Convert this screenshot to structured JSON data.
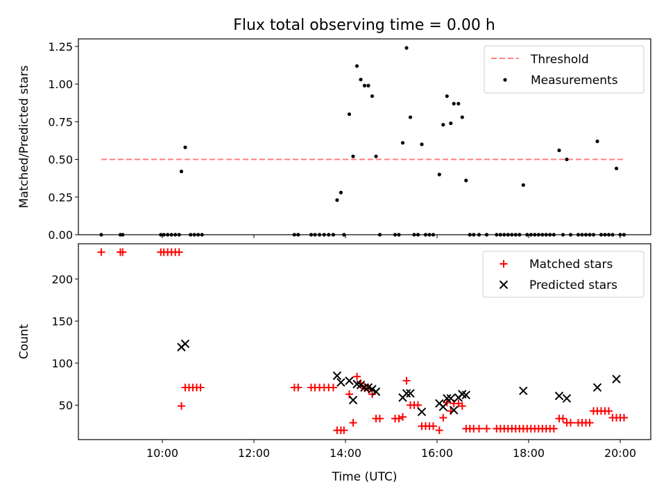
{
  "title": "Flux total observing time = 0.00 h",
  "chart_data": [
    {
      "type": "scatter",
      "ylabel": "Matched/Predicted stars",
      "xlabel": "",
      "ylim": [
        0,
        1.3
      ],
      "xlim": [
        "08:10",
        "20:40"
      ],
      "yticks": [
        0.0,
        0.25,
        0.5,
        0.75,
        1.0,
        1.25
      ],
      "ytick_labels": [
        "0.00",
        "0.25",
        "0.50",
        "0.75",
        "1.00",
        "1.25"
      ],
      "xticks": [
        "10:00",
        "12:00",
        "14:00",
        "16:00",
        "18:00",
        "20:00"
      ],
      "legend_position": "top-right",
      "threshold": {
        "name": "Threshold",
        "value": 0.5,
        "x_start": "08:40",
        "x_end": "20:05",
        "color": "#ff8080"
      },
      "measurements": {
        "name": "Measurements",
        "color": "#000000",
        "points": [
          [
            "08:40",
            0
          ],
          [
            "09:05",
            0
          ],
          [
            "09:08",
            0
          ],
          [
            "09:58",
            0
          ],
          [
            "10:02",
            0
          ],
          [
            "10:07",
            0
          ],
          [
            "10:12",
            0
          ],
          [
            "10:17",
            0
          ],
          [
            "10:22",
            0
          ],
          [
            "10:25",
            0.42
          ],
          [
            "10:30",
            0.58
          ],
          [
            "10:37",
            0
          ],
          [
            "10:42",
            0
          ],
          [
            "10:47",
            0
          ],
          [
            "10:52",
            0
          ],
          [
            "12:53",
            0
          ],
          [
            "12:58",
            0
          ],
          [
            "13:15",
            0
          ],
          [
            "13:20",
            0
          ],
          [
            "13:26",
            0
          ],
          [
            "13:32",
            0
          ],
          [
            "13:38",
            0
          ],
          [
            "13:44",
            0
          ],
          [
            "13:49",
            0.23
          ],
          [
            "13:54",
            0.28
          ],
          [
            "13:58",
            0
          ],
          [
            "14:05",
            0.8
          ],
          [
            "14:10",
            0.52
          ],
          [
            "14:15",
            1.12
          ],
          [
            "14:20",
            1.03
          ],
          [
            "14:25",
            0.99
          ],
          [
            "14:30",
            0.99
          ],
          [
            "14:35",
            0.92
          ],
          [
            "14:40",
            0.52
          ],
          [
            "14:45",
            0
          ],
          [
            "15:05",
            0
          ],
          [
            "15:10",
            0
          ],
          [
            "15:15",
            0.61
          ],
          [
            "15:20",
            1.24
          ],
          [
            "15:25",
            0.78
          ],
          [
            "15:30",
            0
          ],
          [
            "15:35",
            0
          ],
          [
            "15:40",
            0.6
          ],
          [
            "15:45",
            0
          ],
          [
            "15:50",
            0
          ],
          [
            "15:55",
            0
          ],
          [
            "16:03",
            0.4
          ],
          [
            "16:08",
            0.73
          ],
          [
            "16:13",
            0.92
          ],
          [
            "16:18",
            0.74
          ],
          [
            "16:22",
            0.87
          ],
          [
            "16:28",
            0.87
          ],
          [
            "16:33",
            0.78
          ],
          [
            "16:38",
            0.36
          ],
          [
            "16:43",
            0
          ],
          [
            "16:48",
            0
          ],
          [
            "16:55",
            0
          ],
          [
            "17:05",
            0
          ],
          [
            "17:18",
            0
          ],
          [
            "17:23",
            0
          ],
          [
            "17:28",
            0
          ],
          [
            "17:33",
            0
          ],
          [
            "17:38",
            0
          ],
          [
            "17:43",
            0
          ],
          [
            "17:48",
            0
          ],
          [
            "17:53",
            0.33
          ],
          [
            "17:58",
            0
          ],
          [
            "18:03",
            0
          ],
          [
            "18:08",
            0
          ],
          [
            "18:13",
            0
          ],
          [
            "18:18",
            0
          ],
          [
            "18:23",
            0
          ],
          [
            "18:28",
            0
          ],
          [
            "18:33",
            0
          ],
          [
            "18:40",
            0.56
          ],
          [
            "18:45",
            0
          ],
          [
            "18:50",
            0.5
          ],
          [
            "18:55",
            0
          ],
          [
            "19:05",
            0
          ],
          [
            "19:10",
            0
          ],
          [
            "19:15",
            0
          ],
          [
            "19:20",
            0
          ],
          [
            "19:25",
            0
          ],
          [
            "19:30",
            0.62
          ],
          [
            "19:35",
            0
          ],
          [
            "19:40",
            0
          ],
          [
            "19:45",
            0
          ],
          [
            "19:50",
            0
          ],
          [
            "19:55",
            0.44
          ],
          [
            "20:00",
            0
          ],
          [
            "20:05",
            0
          ]
        ]
      }
    },
    {
      "type": "scatter",
      "ylabel": "Count",
      "xlabel": "Time (UTC)",
      "ylim": [
        9,
        242
      ],
      "xlim": [
        "08:10",
        "20:40"
      ],
      "yticks": [
        50,
        100,
        150,
        200
      ],
      "ytick_labels": [
        "50",
        "100",
        "150",
        "200"
      ],
      "xticks": [
        "10:00",
        "12:00",
        "14:00",
        "16:00",
        "18:00",
        "20:00"
      ],
      "xtick_labels": [
        "10:00",
        "12:00",
        "14:00",
        "16:00",
        "18:00",
        "20:00"
      ],
      "legend_position": "top-right",
      "series": [
        {
          "name": "Matched stars",
          "marker": "plus",
          "color": "#ff0000",
          "points": [
            [
              "08:40",
              232
            ],
            [
              "09:05",
              232
            ],
            [
              "09:08",
              232
            ],
            [
              "09:58",
              232
            ],
            [
              "10:02",
              232
            ],
            [
              "10:07",
              232
            ],
            [
              "10:12",
              232
            ],
            [
              "10:17",
              232
            ],
            [
              "10:22",
              232
            ],
            [
              "10:25",
              49
            ],
            [
              "10:30",
              71
            ],
            [
              "10:35",
              71
            ],
            [
              "10:40",
              71
            ],
            [
              "10:45",
              71
            ],
            [
              "10:50",
              71
            ],
            [
              "12:53",
              71
            ],
            [
              "12:58",
              71
            ],
            [
              "13:15",
              71
            ],
            [
              "13:20",
              71
            ],
            [
              "13:26",
              71
            ],
            [
              "13:32",
              71
            ],
            [
              "13:38",
              71
            ],
            [
              "13:44",
              71
            ],
            [
              "13:49",
              20
            ],
            [
              "13:54",
              20
            ],
            [
              "13:58",
              20
            ],
            [
              "14:05",
              63
            ],
            [
              "14:10",
              29
            ],
            [
              "14:15",
              84
            ],
            [
              "14:20",
              76
            ],
            [
              "14:25",
              70
            ],
            [
              "14:30",
              70
            ],
            [
              "14:35",
              63
            ],
            [
              "14:40",
              34
            ],
            [
              "14:45",
              34
            ],
            [
              "15:05",
              34
            ],
            [
              "15:10",
              34
            ],
            [
              "15:15",
              36
            ],
            [
              "15:20",
              79
            ],
            [
              "15:25",
              50
            ],
            [
              "15:30",
              50
            ],
            [
              "15:35",
              50
            ],
            [
              "15:40",
              25
            ],
            [
              "15:45",
              25
            ],
            [
              "15:50",
              25
            ],
            [
              "15:55",
              25
            ],
            [
              "16:03",
              20
            ],
            [
              "16:08",
              35
            ],
            [
              "16:13",
              53
            ],
            [
              "16:18",
              43
            ],
            [
              "16:22",
              52
            ],
            [
              "16:28",
              52
            ],
            [
              "16:33",
              49
            ],
            [
              "16:38",
              22
            ],
            [
              "16:43",
              22
            ],
            [
              "16:48",
              22
            ],
            [
              "16:55",
              22
            ],
            [
              "17:05",
              22
            ],
            [
              "17:18",
              22
            ],
            [
              "17:23",
              22
            ],
            [
              "17:28",
              22
            ],
            [
              "17:33",
              22
            ],
            [
              "17:38",
              22
            ],
            [
              "17:43",
              22
            ],
            [
              "17:48",
              22
            ],
            [
              "17:53",
              22
            ],
            [
              "17:58",
              22
            ],
            [
              "18:03",
              22
            ],
            [
              "18:08",
              22
            ],
            [
              "18:13",
              22
            ],
            [
              "18:18",
              22
            ],
            [
              "18:23",
              22
            ],
            [
              "18:28",
              22
            ],
            [
              "18:33",
              22
            ],
            [
              "18:40",
              34
            ],
            [
              "18:45",
              34
            ],
            [
              "18:50",
              29
            ],
            [
              "18:55",
              29
            ],
            [
              "19:05",
              29
            ],
            [
              "19:10",
              29
            ],
            [
              "19:15",
              29
            ],
            [
              "19:20",
              29
            ],
            [
              "19:25",
              43
            ],
            [
              "19:30",
              43
            ],
            [
              "19:35",
              43
            ],
            [
              "19:40",
              43
            ],
            [
              "19:45",
              43
            ],
            [
              "19:50",
              35
            ],
            [
              "19:55",
              35
            ],
            [
              "20:00",
              35
            ],
            [
              "20:05",
              35
            ]
          ]
        },
        {
          "name": "Predicted stars",
          "marker": "x",
          "color": "#000000",
          "points": [
            [
              "10:25",
              119
            ],
            [
              "10:30",
              123
            ],
            [
              "13:49",
              85
            ],
            [
              "13:54",
              77
            ],
            [
              "14:05",
              79
            ],
            [
              "14:10",
              56
            ],
            [
              "14:15",
              75
            ],
            [
              "14:20",
              74
            ],
            [
              "14:25",
              71
            ],
            [
              "14:30",
              71
            ],
            [
              "14:35",
              69
            ],
            [
              "14:40",
              66
            ],
            [
              "15:15",
              59
            ],
            [
              "15:20",
              64
            ],
            [
              "15:25",
              64
            ],
            [
              "15:40",
              42
            ],
            [
              "16:03",
              52
            ],
            [
              "16:08",
              48
            ],
            [
              "16:13",
              58
            ],
            [
              "16:18",
              58
            ],
            [
              "16:22",
              44
            ],
            [
              "16:28",
              59
            ],
            [
              "16:33",
              63
            ],
            [
              "16:38",
              62
            ],
            [
              "17:53",
              67
            ],
            [
              "18:40",
              61
            ],
            [
              "18:50",
              58
            ],
            [
              "19:30",
              71
            ],
            [
              "19:55",
              81
            ]
          ]
        }
      ]
    }
  ]
}
